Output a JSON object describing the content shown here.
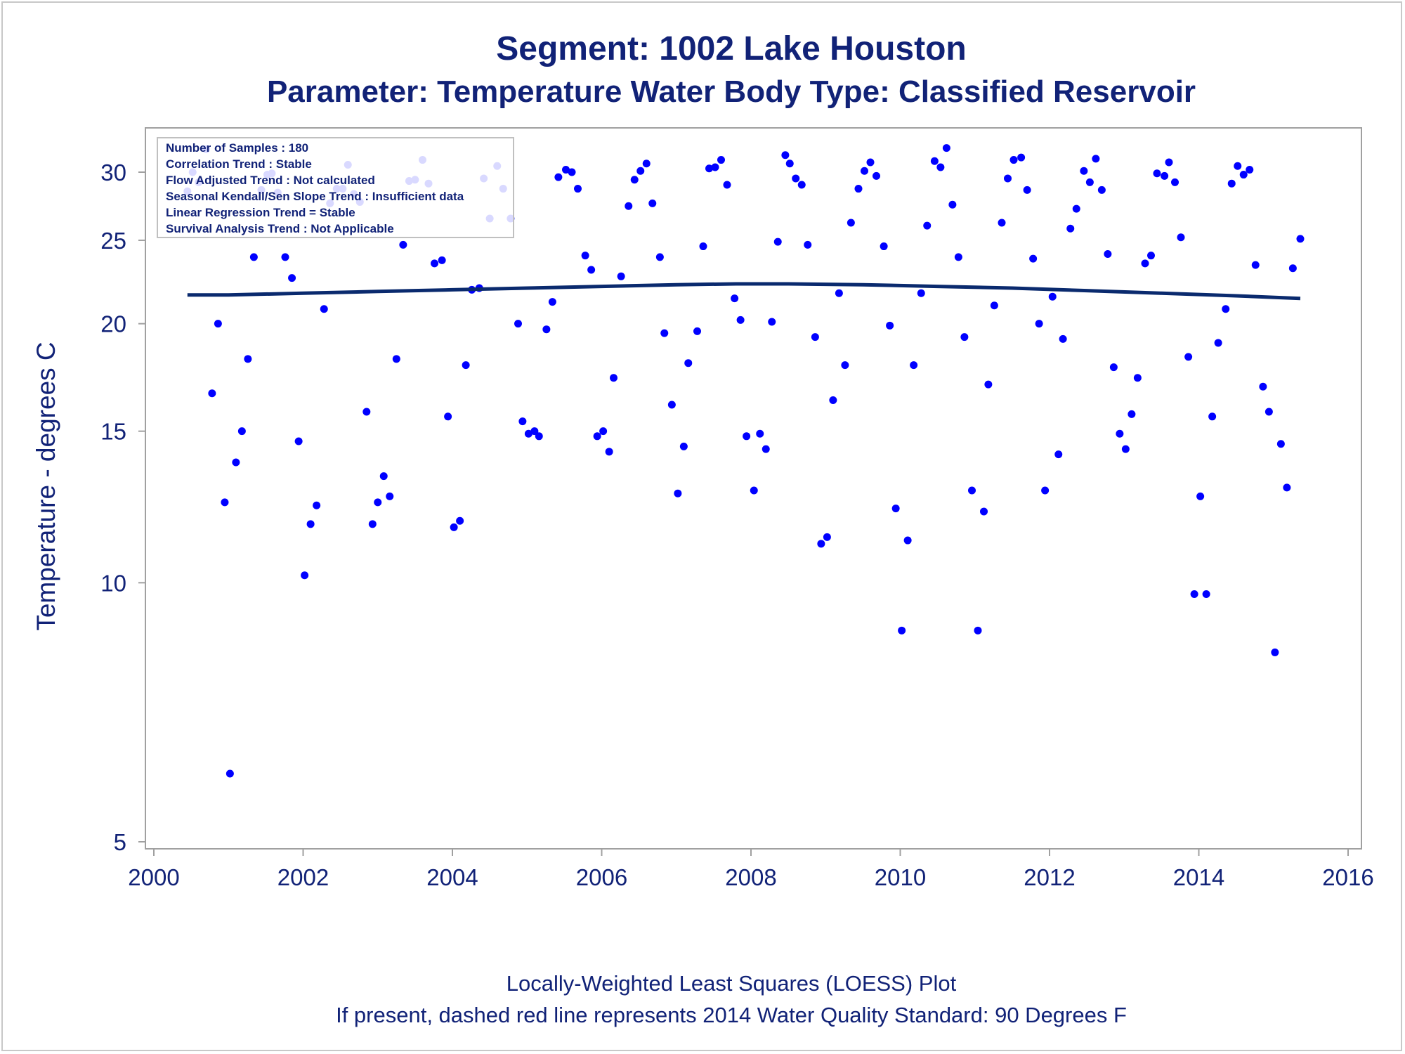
{
  "titles": {
    "line1": "Segment: 1002  Lake Houston",
    "line2": "Parameter: Temperature   Water Body Type: Classified Reservoir"
  },
  "footnotes": {
    "line1": "Locally-Weighted Least Squares (LOESS) Plot",
    "line2": "If present, dashed red line represents 2014 Water Quality Standard: 90   Degrees F"
  },
  "stats_box": [
    "Number of Samples : 180",
    "Correlation Trend : Stable",
    "Flow Adjusted Trend : Not calculated",
    "Seasonal Kendall/Sen Slope Trend : Insufficient data",
    "Linear Regression Trend = Stable",
    "Survival Analysis Trend : Not Applicable"
  ],
  "colors": {
    "text": "#112277",
    "points": "#0000ff",
    "loess_line": "#0a2a6e",
    "frame": "#a0a0a0"
  },
  "chart_data": {
    "type": "scatter",
    "xlabel": "",
    "ylabel": "Temperature - degrees C",
    "y_scale": "log",
    "xlim": [
      2000,
      2016
    ],
    "ylim": [
      4.9,
      32.5
    ],
    "xticks": [
      2000,
      2002,
      2004,
      2006,
      2008,
      2010,
      2012,
      2014,
      2016
    ],
    "yticks": [
      5,
      10,
      15,
      20,
      25,
      30
    ],
    "grid": false,
    "points": [
      [
        2000.45,
        28.5
      ],
      [
        2000.52,
        30.0
      ],
      [
        2000.6,
        29.2
      ],
      [
        2000.7,
        31.9
      ],
      [
        2000.78,
        16.6
      ],
      [
        2000.86,
        20.0
      ],
      [
        2000.95,
        12.4
      ],
      [
        2001.02,
        6.0
      ],
      [
        2001.1,
        13.8
      ],
      [
        2001.18,
        15.0
      ],
      [
        2001.26,
        18.2
      ],
      [
        2001.34,
        23.9
      ],
      [
        2001.44,
        28.6
      ],
      [
        2001.52,
        29.8
      ],
      [
        2001.58,
        29.9
      ],
      [
        2001.66,
        28.4
      ],
      [
        2001.76,
        23.9
      ],
      [
        2001.85,
        22.6
      ],
      [
        2001.94,
        14.6
      ],
      [
        2002.02,
        10.2
      ],
      [
        2002.1,
        11.7
      ],
      [
        2002.18,
        12.3
      ],
      [
        2002.28,
        20.8
      ],
      [
        2002.36,
        27.6
      ],
      [
        2002.45,
        28.7
      ],
      [
        2002.53,
        28.7
      ],
      [
        2002.6,
        30.6
      ],
      [
        2002.68,
        28.3
      ],
      [
        2002.76,
        27.7
      ],
      [
        2002.85,
        15.8
      ],
      [
        2002.93,
        11.7
      ],
      [
        2003.0,
        12.4
      ],
      [
        2003.08,
        13.3
      ],
      [
        2003.16,
        12.6
      ],
      [
        2003.25,
        18.2
      ],
      [
        2003.34,
        24.7
      ],
      [
        2003.42,
        29.3
      ],
      [
        2003.5,
        29.4
      ],
      [
        2003.6,
        31.0
      ],
      [
        2003.68,
        29.1
      ],
      [
        2003.76,
        23.5
      ],
      [
        2003.86,
        23.7
      ],
      [
        2003.94,
        15.6
      ],
      [
        2004.02,
        11.6
      ],
      [
        2004.1,
        11.8
      ],
      [
        2004.18,
        17.9
      ],
      [
        2004.26,
        21.9
      ],
      [
        2004.36,
        22.0
      ],
      [
        2004.42,
        29.5
      ],
      [
        2004.5,
        26.5
      ],
      [
        2004.6,
        30.5
      ],
      [
        2004.68,
        28.7
      ],
      [
        2004.78,
        26.5
      ],
      [
        2004.88,
        20.0
      ],
      [
        2004.94,
        15.4
      ],
      [
        2005.02,
        14.9
      ],
      [
        2005.1,
        15.0
      ],
      [
        2005.16,
        14.8
      ],
      [
        2005.26,
        19.7
      ],
      [
        2005.34,
        21.2
      ],
      [
        2005.42,
        29.6
      ],
      [
        2005.52,
        30.2
      ],
      [
        2005.6,
        30.0
      ],
      [
        2005.68,
        28.7
      ],
      [
        2005.78,
        24.0
      ],
      [
        2005.86,
        23.1
      ],
      [
        2005.94,
        14.8
      ],
      [
        2006.02,
        15.0
      ],
      [
        2006.1,
        14.2
      ],
      [
        2006.16,
        17.3
      ],
      [
        2006.26,
        22.7
      ],
      [
        2006.36,
        27.4
      ],
      [
        2006.44,
        29.4
      ],
      [
        2006.52,
        30.1
      ],
      [
        2006.6,
        30.7
      ],
      [
        2006.68,
        27.6
      ],
      [
        2006.78,
        23.9
      ],
      [
        2006.84,
        19.5
      ],
      [
        2006.94,
        16.1
      ],
      [
        2007.02,
        12.7
      ],
      [
        2007.1,
        14.4
      ],
      [
        2007.16,
        18.0
      ],
      [
        2007.28,
        19.6
      ],
      [
        2007.36,
        24.6
      ],
      [
        2007.44,
        30.3
      ],
      [
        2007.52,
        30.4
      ],
      [
        2007.6,
        31.0
      ],
      [
        2007.68,
        29.0
      ],
      [
        2007.78,
        21.4
      ],
      [
        2007.86,
        20.2
      ],
      [
        2007.94,
        14.8
      ],
      [
        2008.04,
        12.8
      ],
      [
        2008.12,
        14.9
      ],
      [
        2008.2,
        14.3
      ],
      [
        2008.28,
        20.1
      ],
      [
        2008.36,
        24.9
      ],
      [
        2008.46,
        31.4
      ],
      [
        2008.52,
        30.7
      ],
      [
        2008.6,
        29.5
      ],
      [
        2008.68,
        29.0
      ],
      [
        2008.76,
        24.7
      ],
      [
        2008.86,
        19.3
      ],
      [
        2008.94,
        11.1
      ],
      [
        2009.02,
        11.3
      ],
      [
        2009.1,
        16.3
      ],
      [
        2009.18,
        21.7
      ],
      [
        2009.26,
        17.9
      ],
      [
        2009.34,
        26.2
      ],
      [
        2009.44,
        28.7
      ],
      [
        2009.52,
        30.1
      ],
      [
        2009.6,
        30.8
      ],
      [
        2009.68,
        29.7
      ],
      [
        2009.78,
        24.6
      ],
      [
        2009.86,
        19.9
      ],
      [
        2009.94,
        12.2
      ],
      [
        2010.02,
        8.8
      ],
      [
        2010.1,
        11.2
      ],
      [
        2010.18,
        17.9
      ],
      [
        2010.28,
        21.7
      ],
      [
        2010.36,
        26.0
      ],
      [
        2010.46,
        30.9
      ],
      [
        2010.54,
        30.4
      ],
      [
        2010.62,
        32.0
      ],
      [
        2010.7,
        27.5
      ],
      [
        2010.78,
        23.9
      ],
      [
        2010.86,
        19.3
      ],
      [
        2010.96,
        12.8
      ],
      [
        2011.04,
        8.8
      ],
      [
        2011.12,
        12.1
      ],
      [
        2011.18,
        17.0
      ],
      [
        2011.26,
        21.0
      ],
      [
        2011.36,
        26.2
      ],
      [
        2011.44,
        29.5
      ],
      [
        2011.52,
        31.0
      ],
      [
        2011.62,
        31.2
      ],
      [
        2011.7,
        28.6
      ],
      [
        2011.78,
        23.8
      ],
      [
        2011.86,
        20.0
      ],
      [
        2011.94,
        12.8
      ],
      [
        2012.04,
        21.5
      ],
      [
        2012.12,
        14.1
      ],
      [
        2012.18,
        19.2
      ],
      [
        2012.28,
        25.8
      ],
      [
        2012.36,
        27.2
      ],
      [
        2012.46,
        30.1
      ],
      [
        2012.54,
        29.2
      ],
      [
        2012.62,
        31.1
      ],
      [
        2012.7,
        28.6
      ],
      [
        2012.78,
        24.1
      ],
      [
        2012.86,
        17.8
      ],
      [
        2012.94,
        14.9
      ],
      [
        2013.02,
        14.3
      ],
      [
        2013.1,
        15.7
      ],
      [
        2013.18,
        17.3
      ],
      [
        2013.28,
        23.5
      ],
      [
        2013.36,
        24.0
      ],
      [
        2013.44,
        29.9
      ],
      [
        2013.54,
        29.7
      ],
      [
        2013.6,
        30.8
      ],
      [
        2013.68,
        29.2
      ],
      [
        2013.76,
        25.2
      ],
      [
        2013.86,
        18.3
      ],
      [
        2013.94,
        9.7
      ],
      [
        2014.02,
        12.6
      ],
      [
        2014.1,
        9.7
      ],
      [
        2014.18,
        15.6
      ],
      [
        2014.26,
        19.0
      ],
      [
        2014.36,
        20.8
      ],
      [
        2014.44,
        29.1
      ],
      [
        2014.52,
        30.5
      ],
      [
        2014.6,
        29.8
      ],
      [
        2014.68,
        30.2
      ],
      [
        2014.76,
        23.4
      ],
      [
        2014.86,
        16.9
      ],
      [
        2014.94,
        15.8
      ],
      [
        2015.02,
        8.3
      ],
      [
        2015.1,
        14.5
      ],
      [
        2015.18,
        12.9
      ],
      [
        2015.26,
        23.2
      ],
      [
        2015.36,
        25.1
      ]
    ],
    "loess": [
      [
        2000.45,
        21.6
      ],
      [
        2001.0,
        21.6
      ],
      [
        2002.0,
        21.7
      ],
      [
        2003.0,
        21.8
      ],
      [
        2004.0,
        21.9
      ],
      [
        2005.0,
        22.0
      ],
      [
        2006.0,
        22.1
      ],
      [
        2007.0,
        22.2
      ],
      [
        2007.8,
        22.25
      ],
      [
        2008.5,
        22.25
      ],
      [
        2009.5,
        22.2
      ],
      [
        2010.5,
        22.1
      ],
      [
        2011.5,
        22.0
      ],
      [
        2012.5,
        21.85
      ],
      [
        2013.5,
        21.7
      ],
      [
        2014.5,
        21.55
      ],
      [
        2015.36,
        21.4
      ]
    ]
  }
}
